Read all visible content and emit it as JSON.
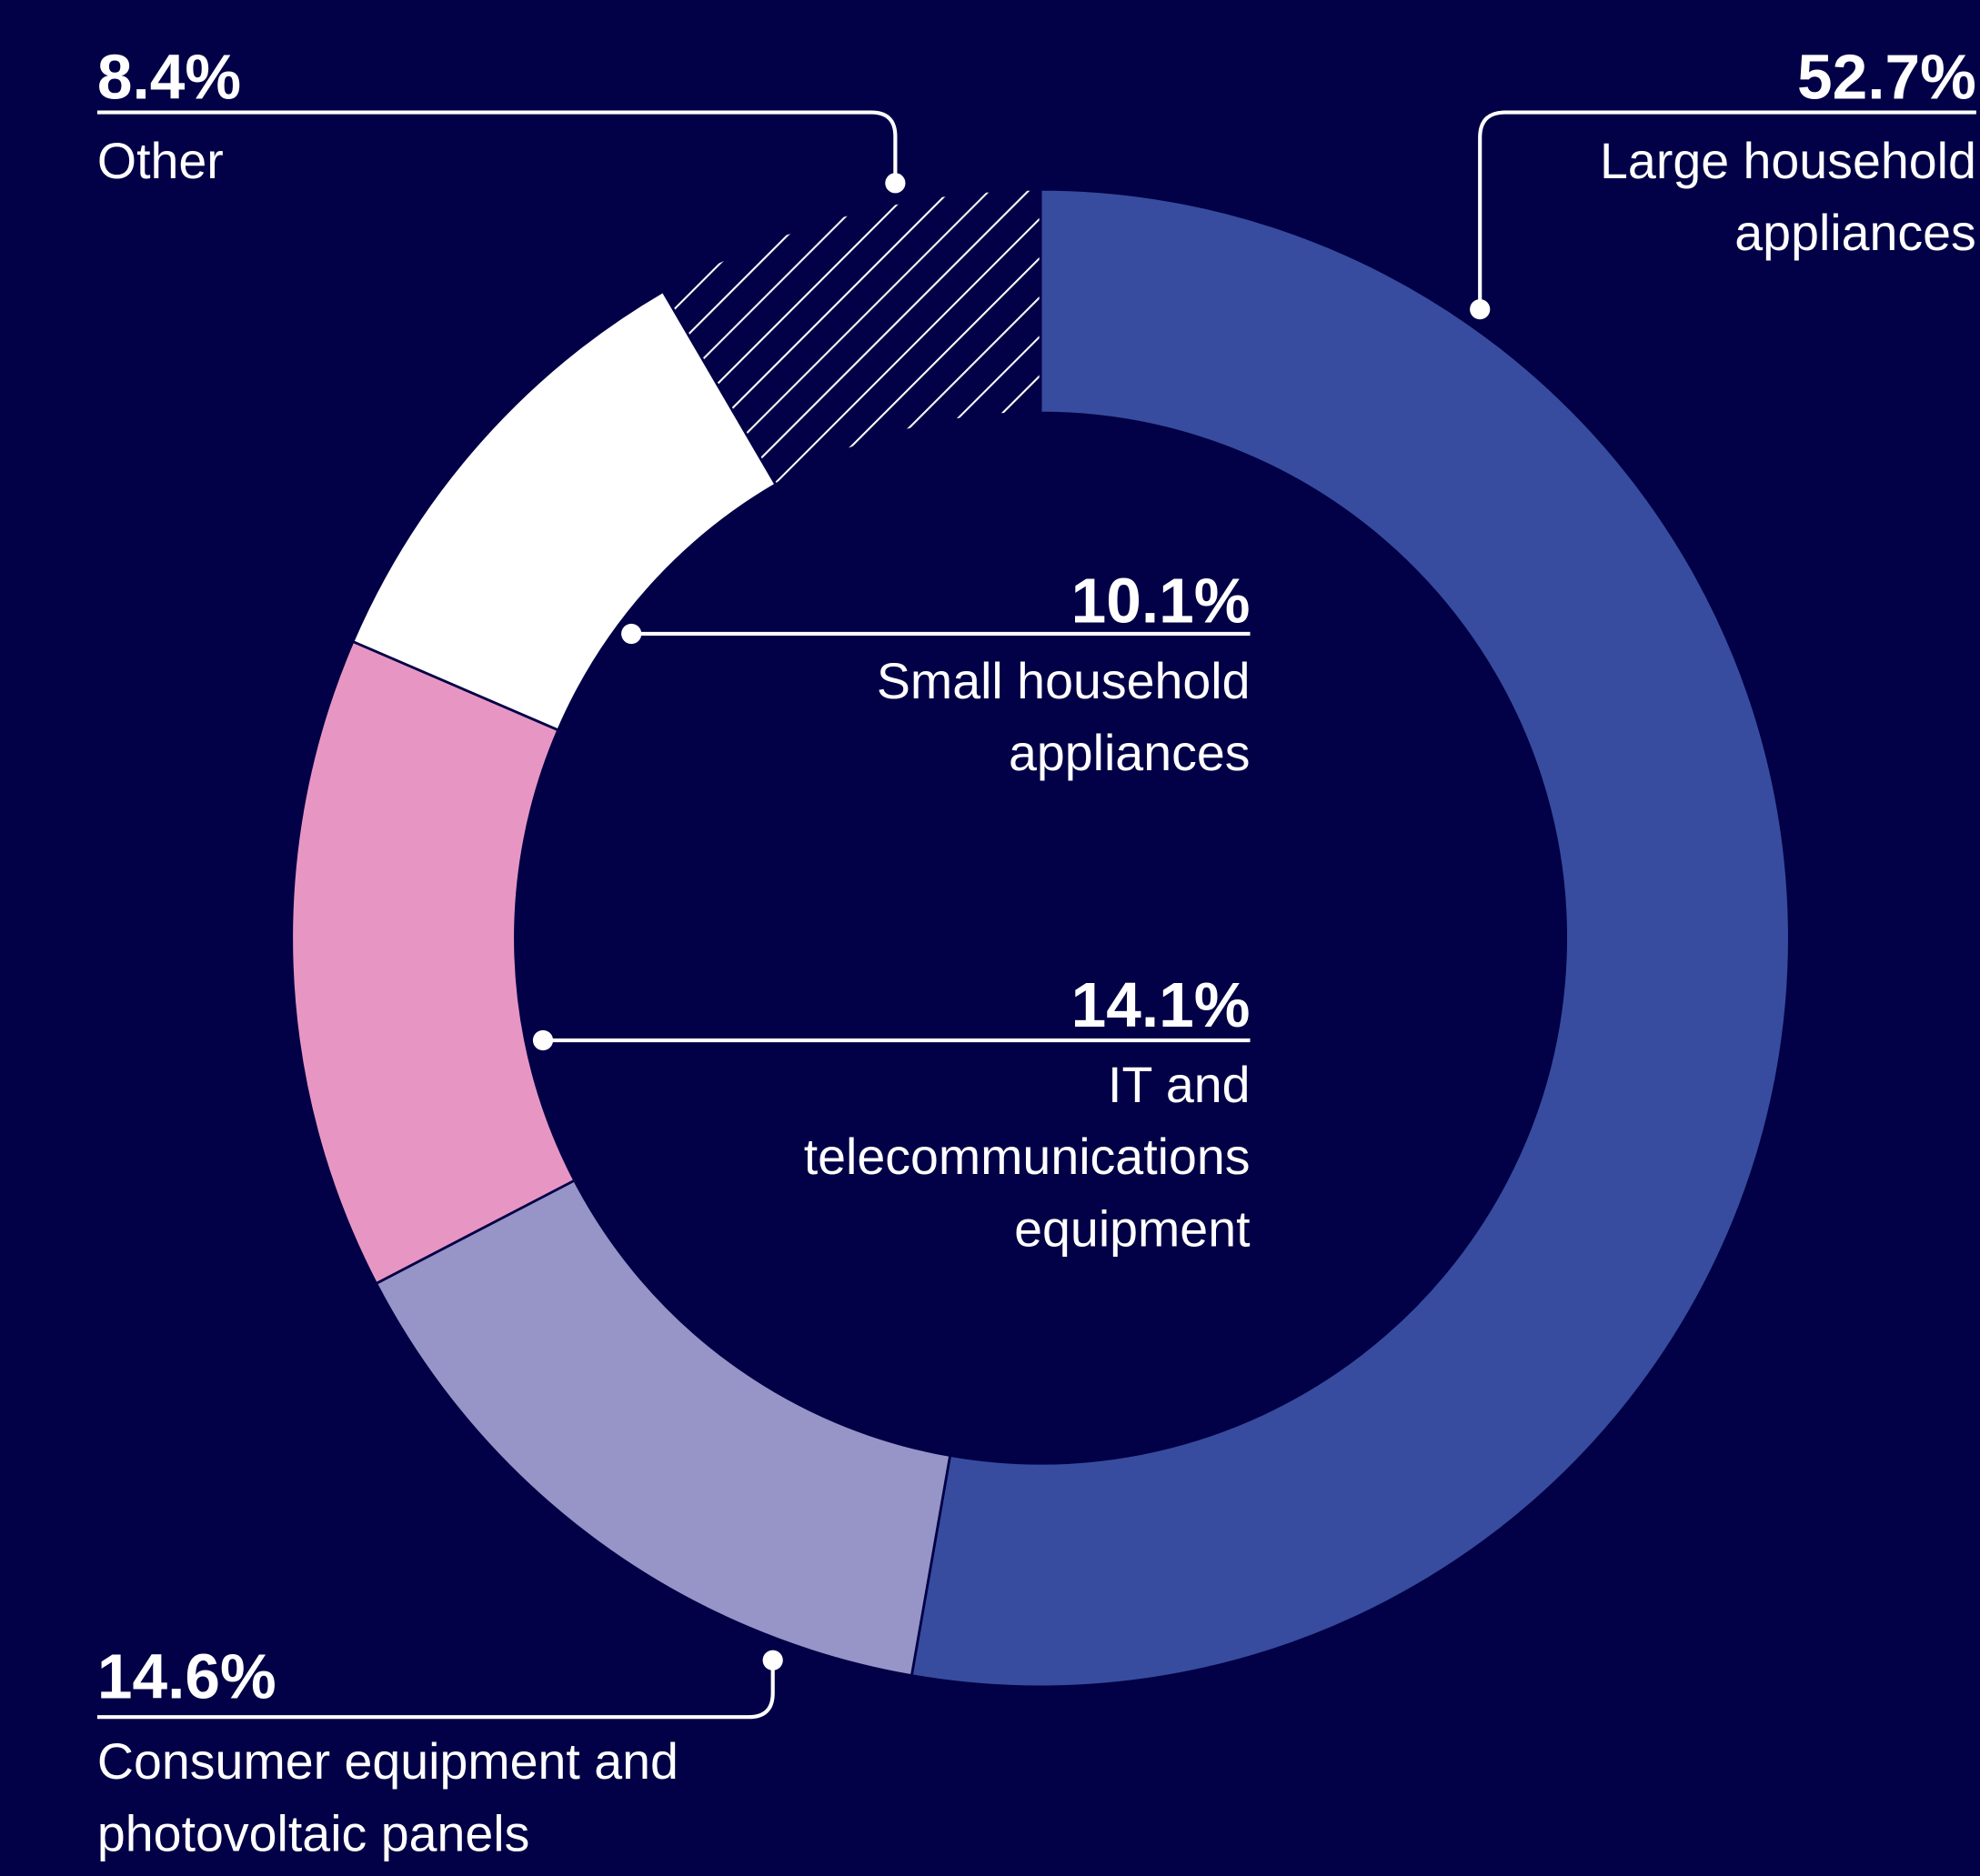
{
  "chart_data": {
    "type": "pie",
    "categories": [
      "Large household appliances",
      "Consumer equipment and photovoltaic panels",
      "IT and telecommunications equipment",
      "Small household appliances",
      "Other"
    ],
    "values": [
      52.7,
      14.6,
      14.1,
      10.1,
      8.4
    ],
    "value_labels": [
      "52.7%",
      "14.6%",
      "14.1%",
      "10.1%",
      "8.4%"
    ],
    "colors": [
      "#374c9e",
      "#9794c8",
      "#e796c3",
      "#ffffff",
      "#ffffff"
    ],
    "hatched": [
      false,
      false,
      false,
      false,
      true
    ]
  }
}
